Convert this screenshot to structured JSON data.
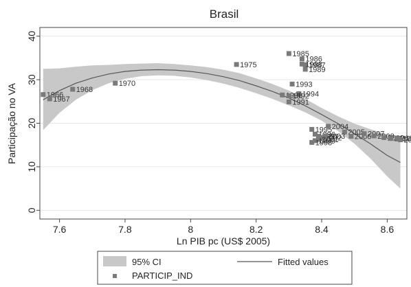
{
  "chart_data": {
    "type": "scatter",
    "title": "Brasil",
    "xlabel": "Ln PIB pc (US$ 2005)",
    "ylabel": "Participação no VA",
    "xlim": [
      7.54,
      8.66
    ],
    "ylim": [
      -2,
      42
    ],
    "xticks": [
      7.6,
      7.8,
      8,
      8.2,
      8.4,
      8.6
    ],
    "xtick_labels": [
      "7.6",
      "7.8",
      "8",
      "8.2",
      "8.4",
      "8.6"
    ],
    "yticks": [
      0,
      10,
      20,
      30,
      40
    ],
    "ytick_labels": [
      "0",
      "10",
      "20",
      "30",
      "40"
    ],
    "grid": "horizontal",
    "legend_position": "bottom",
    "legend": {
      "ci_label": "95% CI",
      "fit_label": "Fitted values",
      "points_label": "PARTICIP_IND"
    },
    "colors": {
      "ci_band": "#c8c8c8",
      "fit_line": "#555555",
      "points": "#7a7a7a",
      "grid": "#e6e6e6"
    },
    "fitted": {
      "x": [
        7.55,
        7.6,
        7.65,
        7.7,
        7.75,
        7.8,
        7.85,
        7.9,
        7.95,
        8.0,
        8.05,
        8.1,
        8.15,
        8.2,
        8.25,
        8.3,
        8.35,
        8.4,
        8.45,
        8.5,
        8.55,
        8.6,
        8.64
      ],
      "y": [
        25.4,
        27.5,
        29.2,
        30.4,
        31.3,
        31.9,
        32.2,
        32.3,
        32.2,
        31.9,
        31.4,
        30.7,
        29.8,
        28.6,
        27.3,
        25.8,
        24.0,
        22.0,
        19.9,
        17.6,
        15.2,
        12.6,
        11.0
      ],
      "lower": [
        18.4,
        22.4,
        25.4,
        27.6,
        29.2,
        30.2,
        30.8,
        31.0,
        30.9,
        30.5,
        29.9,
        29.1,
        28.1,
        26.9,
        25.6,
        24.1,
        22.5,
        20.6,
        18.2,
        15.3,
        11.8,
        7.8,
        5.0
      ],
      "upper": [
        32.5,
        32.6,
        33.0,
        33.3,
        33.4,
        33.6,
        33.7,
        33.8,
        33.6,
        33.3,
        32.9,
        32.3,
        31.5,
        30.3,
        29.0,
        27.5,
        25.6,
        23.5,
        21.6,
        19.9,
        18.6,
        17.4,
        17.0
      ]
    },
    "points": [
      {
        "label": "1966",
        "x": 7.55,
        "y": 26.6
      },
      {
        "label": "1967",
        "x": 7.57,
        "y": 25.6
      },
      {
        "label": "1968",
        "x": 7.64,
        "y": 27.8
      },
      {
        "label": "1970",
        "x": 7.77,
        "y": 29.2
      },
      {
        "label": "1975",
        "x": 8.14,
        "y": 33.5
      },
      {
        "label": "1985",
        "x": 8.3,
        "y": 36.0
      },
      {
        "label": "1986",
        "x": 8.34,
        "y": 34.8
      },
      {
        "label": "1987",
        "x": 8.35,
        "y": 33.4
      },
      {
        "label": "1988",
        "x": 8.34,
        "y": 33.6
      },
      {
        "label": "1989",
        "x": 8.35,
        "y": 32.4
      },
      {
        "label": "1993",
        "x": 8.31,
        "y": 29.0
      },
      {
        "label": "1994",
        "x": 8.33,
        "y": 26.8
      },
      {
        "label": "1990",
        "x": 8.28,
        "y": 26.5
      },
      {
        "label": "1992",
        "x": 8.3,
        "y": 26.3
      },
      {
        "label": "1991",
        "x": 8.3,
        "y": 24.9
      },
      {
        "label": "1995",
        "x": 8.37,
        "y": 18.6
      },
      {
        "label": "2004",
        "x": 8.42,
        "y": 19.3
      },
      {
        "label": "2005",
        "x": 8.47,
        "y": 18.0
      },
      {
        "label": "1996",
        "x": 8.38,
        "y": 17.5
      },
      {
        "label": "1997",
        "x": 8.39,
        "y": 17.0
      },
      {
        "label": "2002",
        "x": 8.4,
        "y": 16.7
      },
      {
        "label": "2003",
        "x": 8.41,
        "y": 17.1
      },
      {
        "label": "2001",
        "x": 8.39,
        "y": 16.3
      },
      {
        "label": "1999",
        "x": 8.38,
        "y": 16.0
      },
      {
        "label": "1998",
        "x": 8.37,
        "y": 15.6
      },
      {
        "label": "2006",
        "x": 8.49,
        "y": 17.0
      },
      {
        "label": "2007",
        "x": 8.53,
        "y": 17.6
      },
      {
        "label": "2008",
        "x": 8.56,
        "y": 17.1
      },
      {
        "label": "2009",
        "x": 8.59,
        "y": 16.7
      },
      {
        "label": "2010",
        "x": 8.61,
        "y": 16.5
      },
      {
        "label": "2011",
        "x": 8.63,
        "y": 16.6
      },
      {
        "label": "2012",
        "x": 8.64,
        "y": 16.2
      }
    ]
  }
}
